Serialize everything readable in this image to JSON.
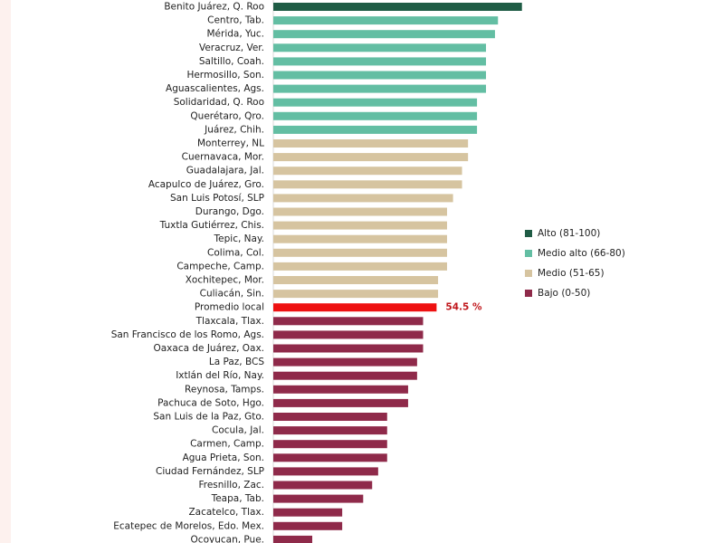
{
  "chart_data": {
    "type": "bar",
    "orientation": "horizontal",
    "value_unit": "%",
    "xlim": [
      0,
      100
    ],
    "legend": [
      {
        "key": "alto",
        "label": "Alto (81-100)",
        "color": "#1f5c45"
      },
      {
        "key": "medio_alto",
        "label": "Medio alto (66-80)",
        "color": "#63bea3"
      },
      {
        "key": "medio",
        "label": "Medio (51-65)",
        "color": "#d6c4a0"
      },
      {
        "key": "bajo",
        "label": "Bajo (0-50)",
        "color": "#8f2a4a"
      }
    ],
    "average_color": "#ee1111",
    "average_label_color": "#c0171c",
    "bars": [
      {
        "label": "Benito Juárez, Q. Roo",
        "value": 83,
        "category": "alto"
      },
      {
        "label": "Centro, Tab.",
        "value": 75,
        "category": "medio_alto"
      },
      {
        "label": "Mérida, Yuc.",
        "value": 74,
        "category": "medio_alto"
      },
      {
        "label": "Veracruz, Ver.",
        "value": 71,
        "category": "medio_alto"
      },
      {
        "label": "Saltillo, Coah.",
        "value": 71,
        "category": "medio_alto"
      },
      {
        "label": "Hermosillo, Son.",
        "value": 71,
        "category": "medio_alto"
      },
      {
        "label": "Aguascalientes, Ags.",
        "value": 71,
        "category": "medio_alto"
      },
      {
        "label": "Solidaridad, Q. Roo",
        "value": 68,
        "category": "medio_alto"
      },
      {
        "label": "Querétaro, Qro.",
        "value": 68,
        "category": "medio_alto"
      },
      {
        "label": "Juárez, Chih.",
        "value": 68,
        "category": "medio_alto"
      },
      {
        "label": "Monterrey, NL",
        "value": 65,
        "category": "medio"
      },
      {
        "label": "Cuernavaca, Mor.",
        "value": 65,
        "category": "medio"
      },
      {
        "label": "Guadalajara, Jal.",
        "value": 63,
        "category": "medio"
      },
      {
        "label": "Acapulco de Juárez, Gro.",
        "value": 63,
        "category": "medio"
      },
      {
        "label": "San Luis Potosí, SLP",
        "value": 60,
        "category": "medio"
      },
      {
        "label": "Durango, Dgo.",
        "value": 58,
        "category": "medio"
      },
      {
        "label": "Tuxtla Gutiérrez, Chis.",
        "value": 58,
        "category": "medio"
      },
      {
        "label": "Tepic, Nay.",
        "value": 58,
        "category": "medio"
      },
      {
        "label": "Colima, Col.",
        "value": 58,
        "category": "medio"
      },
      {
        "label": "Campeche, Camp.",
        "value": 58,
        "category": "medio"
      },
      {
        "label": "Xochitepec, Mor.",
        "value": 55,
        "category": "medio"
      },
      {
        "label": "Culiacán, Sin.",
        "value": 55,
        "category": "medio"
      },
      {
        "label": "Promedio local",
        "value": 54.5,
        "category": "promedio",
        "value_label": "54.5 %"
      },
      {
        "label": "Tlaxcala, Tlax.",
        "value": 50,
        "category": "bajo"
      },
      {
        "label": "San Francisco de los Romo, Ags.",
        "value": 50,
        "category": "bajo"
      },
      {
        "label": "Oaxaca de Juárez, Oax.",
        "value": 50,
        "category": "bajo"
      },
      {
        "label": "La Paz, BCS",
        "value": 48,
        "category": "bajo"
      },
      {
        "label": "Ixtlán del Río, Nay.",
        "value": 48,
        "category": "bajo"
      },
      {
        "label": "Reynosa, Tamps.",
        "value": 45,
        "category": "bajo"
      },
      {
        "label": "Pachuca de Soto, Hgo.",
        "value": 45,
        "category": "bajo"
      },
      {
        "label": "San Luis de la Paz, Gto.",
        "value": 38,
        "category": "bajo"
      },
      {
        "label": "Cocula, Jal.",
        "value": 38,
        "category": "bajo"
      },
      {
        "label": "Carmen, Camp.",
        "value": 38,
        "category": "bajo"
      },
      {
        "label": "Agua Prieta, Son.",
        "value": 38,
        "category": "bajo"
      },
      {
        "label": "Ciudad Fernández, SLP",
        "value": 35,
        "category": "bajo"
      },
      {
        "label": "Fresnillo, Zac.",
        "value": 33,
        "category": "bajo"
      },
      {
        "label": "Teapa, Tab.",
        "value": 30,
        "category": "bajo"
      },
      {
        "label": "Zacatelco, Tlax.",
        "value": 23,
        "category": "bajo"
      },
      {
        "label": "Ecatepec de Morelos, Edo. Mex.",
        "value": 23,
        "category": "bajo"
      },
      {
        "label": "Ocoyucan, Pue.",
        "value": 13,
        "category": "bajo"
      }
    ]
  }
}
